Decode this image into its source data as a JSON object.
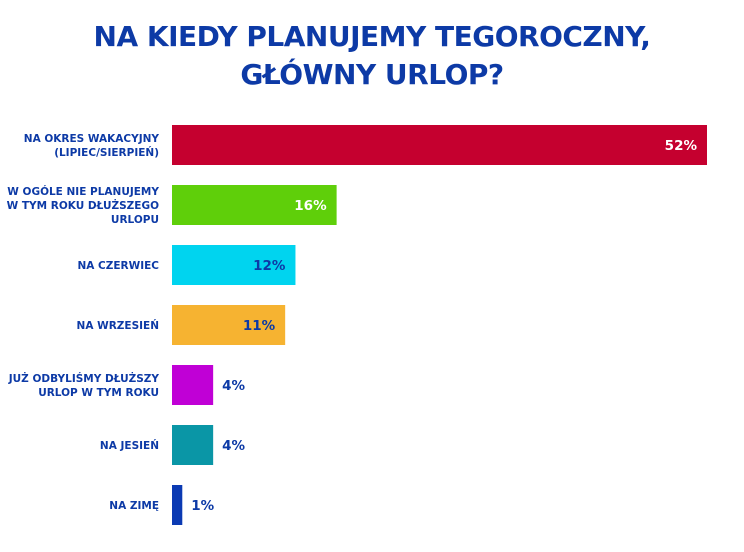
{
  "title_line1": "NA KIEDY PLANUJEMY TEGOROCZNY,",
  "title_line2": "GŁÓWNY URLOP?",
  "chart_data": {
    "type": "bar",
    "orientation": "horizontal",
    "title": "NA KIEDY PLANUJEMY TEGOROCZNY, GŁÓWNY URLOP?",
    "value_suffix": "%",
    "xlim": [
      0,
      52
    ],
    "grid": false,
    "categories": [
      [
        "NA OKRES WAKACYJNY",
        "(LIPIEC/SIERPIEŃ)"
      ],
      [
        "W OGÓLE NIE PLANUJEMY",
        "W TYM ROKU DŁUŻSZEGO",
        "URLOPU"
      ],
      [
        "NA CZERWIEC"
      ],
      [
        "NA WRZESIEŃ"
      ],
      [
        "JUŻ ODBYLIŚMY DŁUŻSZY",
        "URLOP W TYM ROKU"
      ],
      [
        "NA JESIEŃ"
      ],
      [
        "NA ZIMĘ"
      ]
    ],
    "values": [
      52,
      16,
      12,
      11,
      4,
      4,
      1
    ],
    "bar_colors": [
      "#c5002f",
      "#5fcf0a",
      "#00d4ef",
      "#f6b331",
      "#c000d6",
      "#0a96a6",
      "#0b3ab3"
    ],
    "label_colors": [
      "#ffffff",
      "#ffffff",
      "#0d3aa6",
      "#0d3aa6",
      "#0d3aa6",
      "#0d3aa6",
      "#0d3aa6"
    ]
  }
}
